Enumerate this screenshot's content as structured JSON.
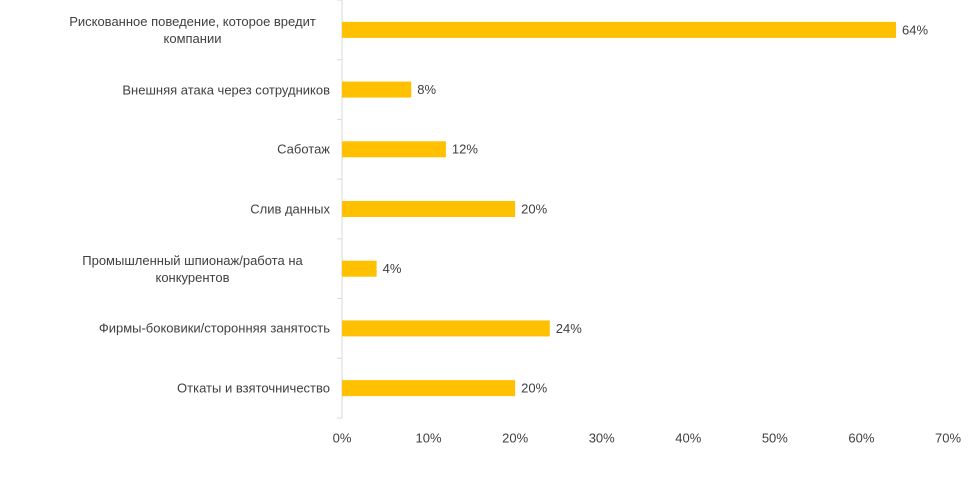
{
  "chart_data": {
    "type": "bar",
    "orientation": "horizontal",
    "categories": [
      "Рискованное поведение, которое вредит компании",
      "Внешняя атака через сотрудников",
      "Саботаж",
      "Слив данных",
      "Промышленный шпионаж/работа на конкурентов",
      "Фирмы-боковики/сторонняя занятость",
      "Откаты и взяточничество"
    ],
    "values": [
      64,
      8,
      12,
      20,
      4,
      24,
      20
    ],
    "value_labels": [
      "64%",
      "8%",
      "12%",
      "20%",
      "4%",
      "24%",
      "20%"
    ],
    "color": "#ffc000",
    "xlim": [
      0,
      70
    ],
    "xticks": [
      {
        "value": 0,
        "label": "0%"
      },
      {
        "value": 10,
        "label": "10%"
      },
      {
        "value": 20,
        "label": "20%"
      },
      {
        "value": 30,
        "label": "30%"
      },
      {
        "value": 40,
        "label": "40%"
      },
      {
        "value": 50,
        "label": "50%"
      },
      {
        "value": 60,
        "label": "60%"
      },
      {
        "value": 70,
        "label": "70%"
      }
    ],
    "grid": false
  }
}
